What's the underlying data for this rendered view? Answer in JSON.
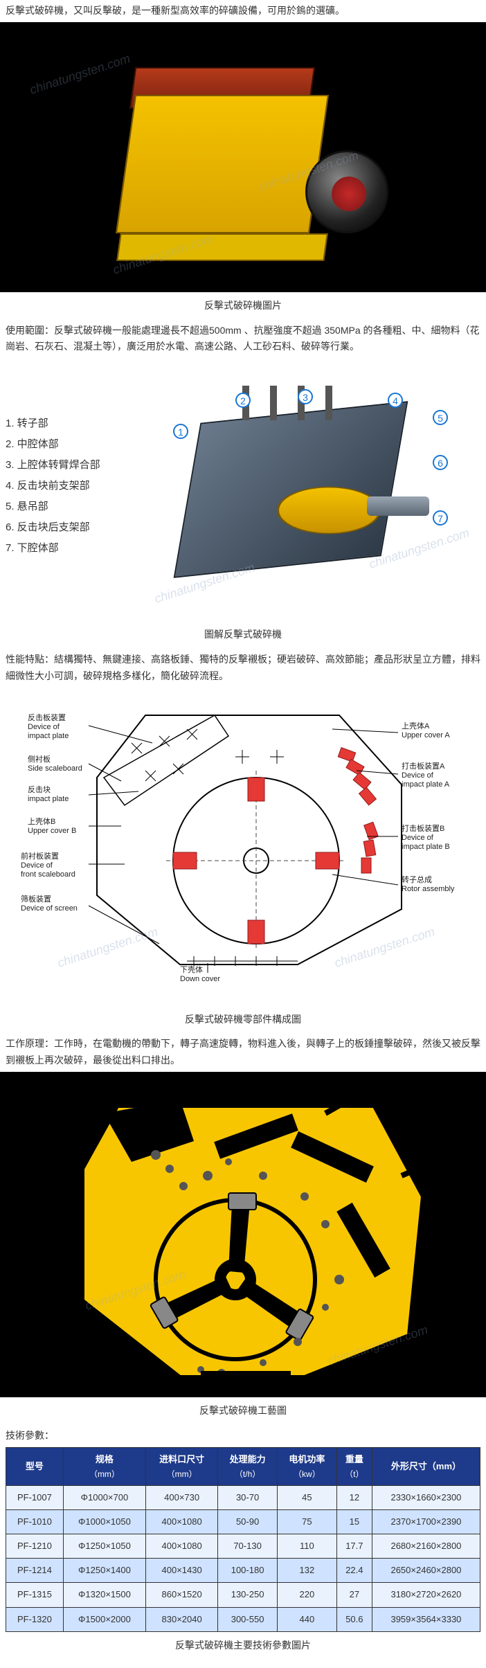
{
  "intro": "反擊式破碎機，又叫反擊破，是一種新型高效率的碎礦設備，可用於鎢的選礦。",
  "photo_caption": "反擊式破碎機圖片",
  "scope": "使用範圍：反擊式破碎機一般能處理邊長不超過500mm 、抗壓強度不超過 350MPa 的各種粗、中、細物料（花崗岩、石灰石、混凝土等），廣泛用於水電、高速公路、人工砂石料、破碎等行業。",
  "diagram2_labels": [
    "1. 转子部",
    "2. 中腔体部",
    "3. 上腔体转臂焊合部",
    "4. 反击块前支架部",
    "5. 悬吊部",
    "6. 反击块后支架部",
    "7. 下腔体部"
  ],
  "diagram2_numbers": [
    "1",
    "2",
    "3",
    "4",
    "5",
    "6",
    "7"
  ],
  "diagram2_caption": "圖解反擊式破碎機",
  "features": "性能特點：結構獨特、無鍵連接、高鉻板錘、獨特的反擊襯板；硬岩破碎、高效節能；產品形狀呈立方體，排料細微性大小可調，破碎規格多樣化，簡化破碎流程。",
  "d3_labels": {
    "l_impact_plate": "反击板装置\nDevice of\nimpact plate",
    "l_side_scale": "侧衬板\nSide scaleboard",
    "l_impact_block": "反击块\nimpact plate",
    "l_upper_b": "上壳体B\nUpper cover B",
    "l_front_scale": "前衬板装置\nDevice of\nfront scaleboard",
    "l_screen": "筛板装置\nDevice of screen",
    "l_down_cover": "下壳体\nDown cover",
    "r_upper_a": "上壳体A\nUpper cover A",
    "r_plate_a": "打击板装置A\nDevice of\nimpact plate A",
    "r_plate_b": "打击板装置B\nDevice of\nimpact plate B",
    "r_rotor": "转子总成\nRotor assembly"
  },
  "diagram3_caption": "反擊式破碎機零部件構成圖",
  "principle": "工作原理：工作時，在電動機的帶動下，轉子高速旋轉，物料進入後，與轉子上的板錘撞擊破碎，然後又被反擊到襯板上再次破碎，最後從出料口排出。",
  "diagram4_caption": "反擊式破碎機工藝圖",
  "params_heading": "技術參數：",
  "table": {
    "columns": [
      {
        "label": "型号",
        "unit": ""
      },
      {
        "label": "规格",
        "unit": "（mm）"
      },
      {
        "label": "进料口尺寸",
        "unit": "（mm）"
      },
      {
        "label": "处理能力",
        "unit": "（t/h）"
      },
      {
        "label": "电机功率",
        "unit": "（kw）"
      },
      {
        "label": "重量",
        "unit": "（t）"
      },
      {
        "label": "外形尺寸（mm）",
        "unit": ""
      }
    ],
    "rows": [
      [
        "PF-1007",
        "Φ1000×700",
        "400×730",
        "30-70",
        "45",
        "12",
        "2330×1660×2300"
      ],
      [
        "PF-1010",
        "Φ1000×1050",
        "400×1080",
        "50-90",
        "75",
        "15",
        "2370×1700×2390"
      ],
      [
        "PF-1210",
        "Φ1250×1050",
        "400×1080",
        "70-130",
        "110",
        "17.7",
        "2680×2160×2800"
      ],
      [
        "PF-1214",
        "Φ1250×1400",
        "400×1430",
        "100-180",
        "132",
        "22.4",
        "2650×2460×2800"
      ],
      [
        "PF-1315",
        "Φ1320×1500",
        "860×1520",
        "130-250",
        "220",
        "27",
        "3180×2720×2620"
      ],
      [
        "PF-1320",
        "Φ1500×2000",
        "830×2040",
        "300-550",
        "440",
        "50.6",
        "3959×3564×3330"
      ]
    ],
    "header_bg": "#1e3a8a",
    "header_fg": "#ffffff",
    "row_even_bg": "#cfe2ff",
    "row_odd_bg": "#eaf2fe",
    "border_color": "#333333"
  },
  "table_caption": "反擊式破碎機主要技術參數圖片",
  "watermark_text": "chinatungsten.com",
  "colors": {
    "machine_yellow": "#f4c200",
    "machine_red": "#b53a1a",
    "black": "#000000",
    "steel": "#6a7a8c",
    "blue_ring": "#1976d2",
    "table_header": "#1e3a8a",
    "diagram_red": "#e53935"
  }
}
